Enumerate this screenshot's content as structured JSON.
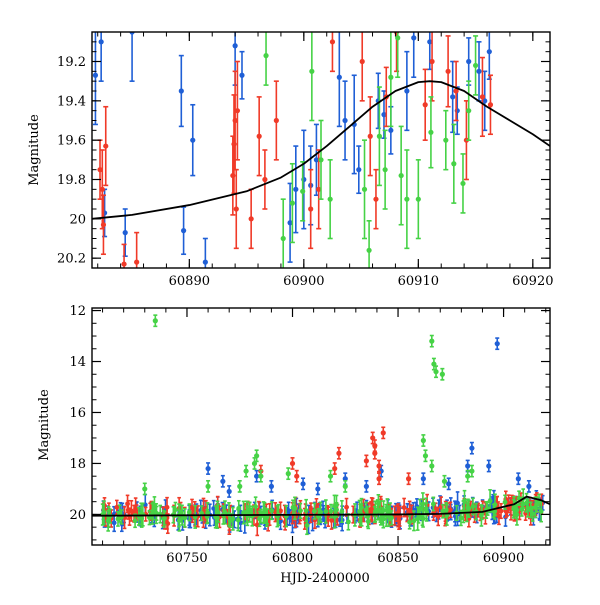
{
  "chart_data": [
    {
      "type": "scatter",
      "title": "",
      "xlabel": "",
      "ylabel": "Magnitude",
      "xlim": [
        60881.5,
        60921.5
      ],
      "ylim": [
        20.25,
        19.05
      ],
      "y_inverted": true,
      "xticks": [
        60890,
        60900,
        60910,
        60920
      ],
      "xtick_labels": [
        "60890",
        "60900",
        "60910",
        "60920"
      ],
      "yticks": [
        19.2,
        19.4,
        19.6,
        19.8,
        20,
        20.2
      ],
      "ytick_labels": [
        "19.2",
        "19.4",
        "19.6",
        "19.8",
        "20",
        "20.2"
      ],
      "grid": false,
      "colors": {
        "blue": "#1f5fd6",
        "red": "#f03a28",
        "green": "#46d246",
        "model": "#000000"
      },
      "model_curve": {
        "x": [
          60881.5,
          60885,
          60890,
          60895,
          60898,
          60900,
          60902,
          60904,
          60906,
          60908,
          60910,
          60911,
          60912,
          60914,
          60916,
          60918,
          60920,
          60921.5
        ],
        "y": [
          20.0,
          19.98,
          19.93,
          19.86,
          19.79,
          19.72,
          19.63,
          19.53,
          19.43,
          19.35,
          19.305,
          19.3,
          19.305,
          19.35,
          19.43,
          19.5,
          19.57,
          19.63
        ]
      },
      "series": [
        {
          "color": "blue",
          "points": [
            {
              "x": 60881.8,
              "y": 19.27,
              "err": 0.25
            },
            {
              "x": 60882.3,
              "y": 19.1,
              "err": 0.2
            },
            {
              "x": 60882.6,
              "y": 19.97,
              "err": 0.12
            },
            {
              "x": 60884.4,
              "y": 20.07,
              "err": 0.12
            },
            {
              "x": 60885.0,
              "y": 19.05,
              "err": 0.25
            },
            {
              "x": 60889.3,
              "y": 19.35,
              "err": 0.18
            },
            {
              "x": 60889.5,
              "y": 20.06,
              "err": 0.12
            },
            {
              "x": 60890.3,
              "y": 19.6,
              "err": 0.18
            },
            {
              "x": 60891.4,
              "y": 20.22,
              "err": 0.12
            },
            {
              "x": 60894.0,
              "y": 19.12,
              "err": 0.2
            },
            {
              "x": 60894.6,
              "y": 19.27,
              "err": 0.12
            },
            {
              "x": 60898.8,
              "y": 20.02,
              "err": 0.2
            },
            {
              "x": 60899.3,
              "y": 19.85,
              "err": 0.22
            },
            {
              "x": 60900.0,
              "y": 19.8,
              "err": 0.25
            },
            {
              "x": 60900.6,
              "y": 19.83,
              "err": 0.2
            },
            {
              "x": 60901.1,
              "y": 19.7,
              "err": 0.18
            },
            {
              "x": 60903.1,
              "y": 19.28,
              "err": 0.25
            },
            {
              "x": 60903.6,
              "y": 19.5,
              "err": 0.2
            },
            {
              "x": 60904.4,
              "y": 19.52,
              "err": 0.25
            },
            {
              "x": 60904.8,
              "y": 19.75,
              "err": 0.12
            },
            {
              "x": 60906.5,
              "y": 19.4,
              "err": 0.14
            },
            {
              "x": 60907.0,
              "y": 19.47,
              "err": 0.12
            },
            {
              "x": 60907.6,
              "y": 19.55,
              "err": 0.12
            },
            {
              "x": 60909.0,
              "y": 19.35,
              "err": 0.2
            },
            {
              "x": 60909.6,
              "y": 19.08,
              "err": 0.2
            },
            {
              "x": 60911.0,
              "y": 19.1,
              "err": 0.14
            },
            {
              "x": 60913.0,
              "y": 19.38,
              "err": 0.18
            },
            {
              "x": 60913.4,
              "y": 19.45,
              "err": 0.12
            },
            {
              "x": 60914.4,
              "y": 19.2,
              "err": 0.12
            },
            {
              "x": 60915.3,
              "y": 19.25,
              "err": 0.15
            },
            {
              "x": 60915.8,
              "y": 19.4,
              "err": 0.15
            },
            {
              "x": 60916.2,
              "y": 19.15,
              "err": 0.14
            }
          ]
        },
        {
          "color": "red",
          "points": [
            {
              "x": 60882.2,
              "y": 19.75,
              "err": 0.15
            },
            {
              "x": 60882.4,
              "y": 19.85,
              "err": 0.2
            },
            {
              "x": 60882.7,
              "y": 19.63,
              "err": 0.2
            },
            {
              "x": 60882.5,
              "y": 20.03,
              "err": 0.15
            },
            {
              "x": 60884.3,
              "y": 20.23,
              "err": 0.1
            },
            {
              "x": 60885.4,
              "y": 20.22,
              "err": 0.15
            },
            {
              "x": 60893.8,
              "y": 19.78,
              "err": 0.2
            },
            {
              "x": 60893.9,
              "y": 19.62,
              "err": 0.25
            },
            {
              "x": 60894.0,
              "y": 19.5,
              "err": 0.25
            },
            {
              "x": 60894.1,
              "y": 19.95,
              "err": 0.2
            },
            {
              "x": 60894.2,
              "y": 19.45,
              "err": 0.25
            },
            {
              "x": 60895.4,
              "y": 20.0,
              "err": 0.15
            },
            {
              "x": 60896.1,
              "y": 19.58,
              "err": 0.2
            },
            {
              "x": 60896.6,
              "y": 19.8,
              "err": 0.15
            },
            {
              "x": 60897.6,
              "y": 19.5,
              "err": 0.2
            },
            {
              "x": 60900.6,
              "y": 19.95,
              "err": 0.2
            },
            {
              "x": 60901.3,
              "y": 19.85,
              "err": 0.2
            },
            {
              "x": 60902.5,
              "y": 19.1,
              "err": 0.15
            },
            {
              "x": 60905.1,
              "y": 19.2,
              "err": 0.2
            },
            {
              "x": 60905.8,
              "y": 19.58,
              "err": 0.2
            },
            {
              "x": 60906.3,
              "y": 19.9,
              "err": 0.15
            },
            {
              "x": 60907.2,
              "y": 19.38,
              "err": 0.15
            },
            {
              "x": 60908.1,
              "y": 19.05,
              "err": 0.2
            },
            {
              "x": 60910.6,
              "y": 19.42,
              "err": 0.18
            },
            {
              "x": 60911.2,
              "y": 19.2,
              "err": 0.2
            },
            {
              "x": 60912.6,
              "y": 19.25,
              "err": 0.18
            },
            {
              "x": 60913.3,
              "y": 19.35,
              "err": 0.15
            },
            {
              "x": 60914.2,
              "y": 19.6,
              "err": 0.2
            },
            {
              "x": 60915.6,
              "y": 19.38,
              "err": 0.2
            },
            {
              "x": 60916.3,
              "y": 19.42,
              "err": 0.15
            }
          ]
        },
        {
          "color": "green",
          "points": [
            {
              "x": 60896.7,
              "y": 19.17,
              "err": 0.15
            },
            {
              "x": 60898.2,
              "y": 20.1,
              "err": 0.2
            },
            {
              "x": 60899.0,
              "y": 19.92,
              "err": 0.2
            },
            {
              "x": 60899.9,
              "y": 19.86,
              "err": 0.15
            },
            {
              "x": 60900.7,
              "y": 19.25,
              "err": 0.25
            },
            {
              "x": 60901.5,
              "y": 19.7,
              "err": 0.2
            },
            {
              "x": 60902.3,
              "y": 19.9,
              "err": 0.2
            },
            {
              "x": 60905.3,
              "y": 19.85,
              "err": 0.25
            },
            {
              "x": 60905.7,
              "y": 20.16,
              "err": 0.15
            },
            {
              "x": 60906.6,
              "y": 19.58,
              "err": 0.25
            },
            {
              "x": 60907.1,
              "y": 19.75,
              "err": 0.2
            },
            {
              "x": 60907.6,
              "y": 19.28,
              "err": 0.25
            },
            {
              "x": 60908.2,
              "y": 19.08,
              "err": 0.2
            },
            {
              "x": 60908.5,
              "y": 19.78,
              "err": 0.25
            },
            {
              "x": 60909.0,
              "y": 19.9,
              "err": 0.25
            },
            {
              "x": 60910.0,
              "y": 19.9,
              "err": 0.2
            },
            {
              "x": 60911.1,
              "y": 19.56,
              "err": 0.18
            },
            {
              "x": 60912.4,
              "y": 19.6,
              "err": 0.15
            },
            {
              "x": 60913.1,
              "y": 19.72,
              "err": 0.2
            },
            {
              "x": 60913.9,
              "y": 19.82,
              "err": 0.15
            },
            {
              "x": 60914.4,
              "y": 19.45,
              "err": 0.15
            },
            {
              "x": 60915.0,
              "y": 19.22,
              "err": 0.15
            }
          ]
        }
      ]
    },
    {
      "type": "scatter",
      "title": "",
      "xlabel": "HJD-2400000",
      "ylabel": "Magnitude",
      "xlim": [
        60705,
        60922
      ],
      "ylim": [
        21.2,
        11.9
      ],
      "y_inverted": true,
      "xticks": [
        60750,
        60800,
        60850,
        60900
      ],
      "xtick_labels": [
        "60750",
        "60800",
        "60850",
        "60900"
      ],
      "yticks": [
        12,
        14,
        16,
        18,
        20
      ],
      "ytick_labels": [
        "12",
        "14",
        "16",
        "18",
        "20"
      ],
      "grid": false,
      "baseline": {
        "start": 60705,
        "end": 60922,
        "center": 20.0,
        "spread": 0.28,
        "slope_to": 19.6,
        "count_per_series": 150
      },
      "model_curve": {
        "x": [
          60705,
          60850,
          60870,
          60890,
          60905,
          60911,
          60918,
          60922
        ],
        "y": [
          20.05,
          20.0,
          19.98,
          19.9,
          19.6,
          19.3,
          19.45,
          19.6
        ]
      },
      "series": [
        {
          "color": "blue",
          "outliers": [
            {
              "x": 60760,
              "y": 18.2
            },
            {
              "x": 60767,
              "y": 18.7
            },
            {
              "x": 60770,
              "y": 19.1
            },
            {
              "x": 60783,
              "y": 18.5
            },
            {
              "x": 60790,
              "y": 18.9
            },
            {
              "x": 60805,
              "y": 18.8
            },
            {
              "x": 60812,
              "y": 19.0
            },
            {
              "x": 60825,
              "y": 18.6
            },
            {
              "x": 60835,
              "y": 18.9
            },
            {
              "x": 60842,
              "y": 18.3
            },
            {
              "x": 60862,
              "y": 18.6
            },
            {
              "x": 60874,
              "y": 18.8
            },
            {
              "x": 60883,
              "y": 18.1
            },
            {
              "x": 60885,
              "y": 17.4
            },
            {
              "x": 60893,
              "y": 18.1
            },
            {
              "x": 60897,
              "y": 13.3
            },
            {
              "x": 60907,
              "y": 18.6
            },
            {
              "x": 60912,
              "y": 18.9
            }
          ]
        },
        {
          "color": "red",
          "outliers": [
            {
              "x": 60785,
              "y": 18.3
            },
            {
              "x": 60800,
              "y": 18.0
            },
            {
              "x": 60802,
              "y": 18.5
            },
            {
              "x": 60820,
              "y": 18.2
            },
            {
              "x": 60822,
              "y": 17.6
            },
            {
              "x": 60835,
              "y": 17.9
            },
            {
              "x": 60838,
              "y": 17.0
            },
            {
              "x": 60839,
              "y": 17.3
            },
            {
              "x": 60839,
              "y": 17.6
            },
            {
              "x": 60841,
              "y": 18.1
            },
            {
              "x": 60841,
              "y": 18.6
            },
            {
              "x": 60843,
              "y": 16.8
            },
            {
              "x": 60855,
              "y": 18.6
            }
          ]
        },
        {
          "color": "green",
          "outliers": [
            {
              "x": 60730,
              "y": 19.0
            },
            {
              "x": 60735,
              "y": 12.4
            },
            {
              "x": 60760,
              "y": 18.9
            },
            {
              "x": 60775,
              "y": 18.9
            },
            {
              "x": 60778,
              "y": 18.3
            },
            {
              "x": 60782,
              "y": 18.0
            },
            {
              "x": 60783,
              "y": 17.7
            },
            {
              "x": 60785,
              "y": 18.5
            },
            {
              "x": 60798,
              "y": 18.4
            },
            {
              "x": 60818,
              "y": 18.5
            },
            {
              "x": 60825,
              "y": 18.9
            },
            {
              "x": 60862,
              "y": 17.1
            },
            {
              "x": 60863,
              "y": 17.7
            },
            {
              "x": 60866,
              "y": 18.1
            },
            {
              "x": 60866,
              "y": 13.2
            },
            {
              "x": 60867,
              "y": 14.1
            },
            {
              "x": 60868,
              "y": 14.4
            },
            {
              "x": 60871,
              "y": 14.5
            },
            {
              "x": 60872,
              "y": 18.7
            },
            {
              "x": 60883,
              "y": 18.5
            },
            {
              "x": 60885,
              "y": 18.3
            }
          ]
        }
      ]
    }
  ]
}
